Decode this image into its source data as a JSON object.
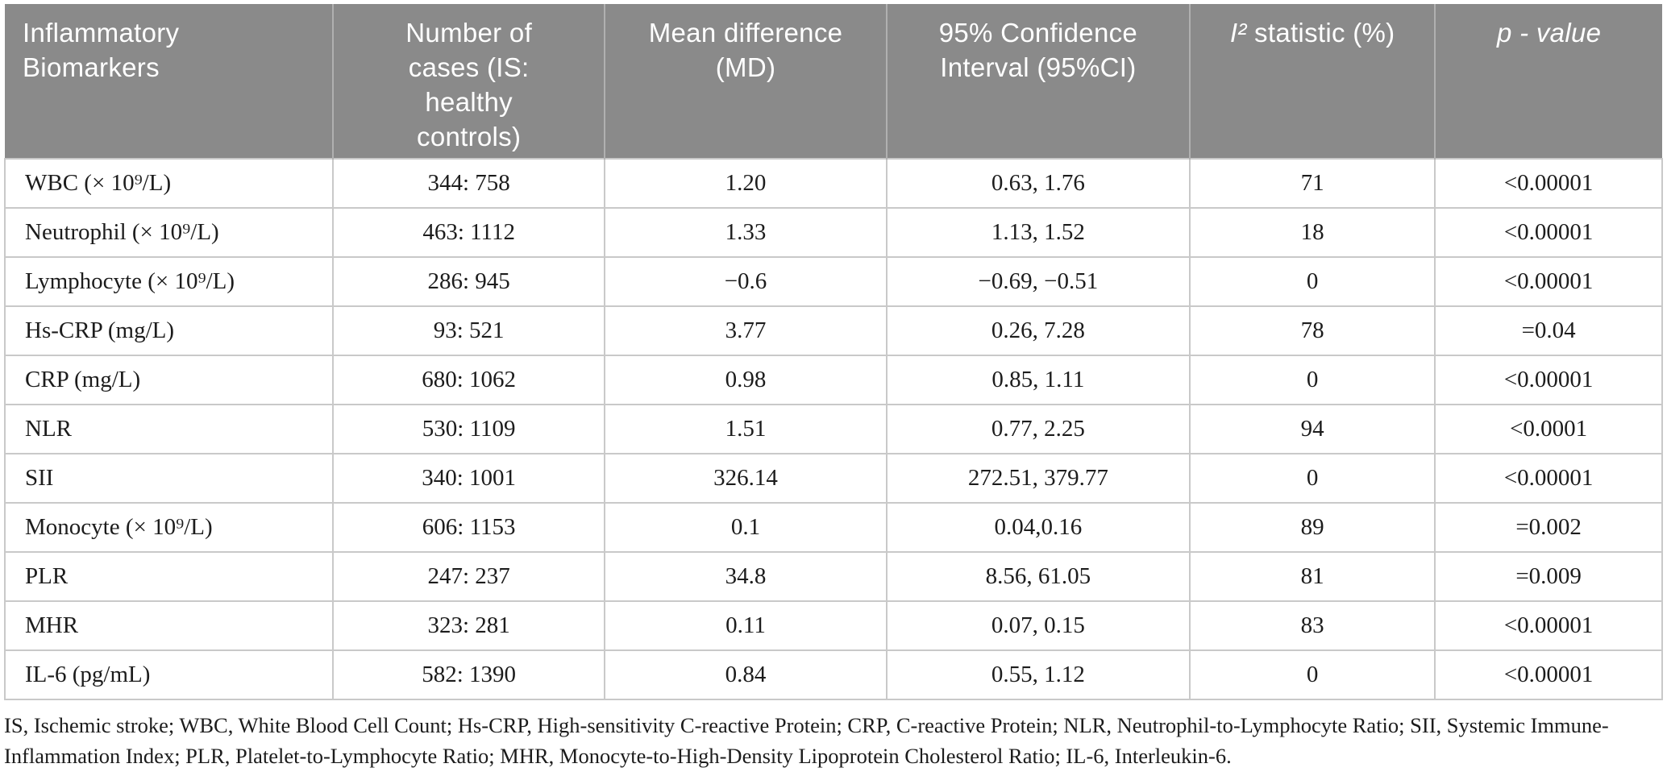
{
  "colors": {
    "header_bg": "#8a8a8a",
    "header_text": "#ffffff",
    "body_text": "#1c1c1c",
    "grid_border": "#c9c9c9"
  },
  "table": {
    "columns": [
      {
        "key": "biomarker",
        "label": "Inflammatory\nBiomarkers",
        "align": "left"
      },
      {
        "key": "cases",
        "label": "Number of\ncases (IS:\nhealthy\ncontrols)",
        "align": "center"
      },
      {
        "key": "md",
        "label": "Mean difference\n(MD)",
        "align": "center"
      },
      {
        "key": "ci",
        "label": "95% Confidence\nInterval (95%CI)",
        "align": "center"
      },
      {
        "key": "i2",
        "label_italic": "I²",
        "label_rest": " statistic (%)",
        "align": "center"
      },
      {
        "key": "p",
        "label": "p - value",
        "align": "center",
        "italic": true
      }
    ],
    "rows": [
      {
        "biomarker": "WBC (× 10⁹/L)",
        "cases": "344: 758",
        "md": "1.20",
        "ci": "0.63, 1.76",
        "i2": "71",
        "p": "<0.00001"
      },
      {
        "biomarker": "Neutrophil (× 10⁹/L)",
        "cases": "463: 1112",
        "md": "1.33",
        "ci": "1.13, 1.52",
        "i2": "18",
        "p": "<0.00001"
      },
      {
        "biomarker": "Lymphocyte (× 10⁹/L)",
        "cases": "286: 945",
        "md": "−0.6",
        "ci": "−0.69, −0.51",
        "i2": "0",
        "p": "<0.00001"
      },
      {
        "biomarker": "Hs-CRP (mg/L)",
        "cases": "93: 521",
        "md": "3.77",
        "ci": "0.26, 7.28",
        "i2": "78",
        "p": "=0.04"
      },
      {
        "biomarker": "CRP (mg/L)",
        "cases": "680: 1062",
        "md": "0.98",
        "ci": "0.85, 1.11",
        "i2": "0",
        "p": "<0.00001"
      },
      {
        "biomarker": "NLR",
        "cases": "530: 1109",
        "md": "1.51",
        "ci": "0.77, 2.25",
        "i2": "94",
        "p": "<0.0001"
      },
      {
        "biomarker": "SII",
        "cases": "340: 1001",
        "md": "326.14",
        "ci": "272.51, 379.77",
        "i2": "0",
        "p": "<0.00001"
      },
      {
        "biomarker": "Monocyte (× 10⁹/L)",
        "cases": "606: 1153",
        "md": "0.1",
        "ci": "0.04,0.16",
        "i2": "89",
        "p": "=0.002"
      },
      {
        "biomarker": "PLR",
        "cases": "247: 237",
        "md": "34.8",
        "ci": "8.56, 61.05",
        "i2": "81",
        "p": "=0.009"
      },
      {
        "biomarker": "MHR",
        "cases": "323: 281",
        "md": "0.11",
        "ci": "0.07, 0.15",
        "i2": "83",
        "p": "<0.00001"
      },
      {
        "biomarker": "IL-6 (pg/mL)",
        "cases": "582: 1390",
        "md": "0.84",
        "ci": "0.55, 1.12",
        "i2": "0",
        "p": "<0.00001"
      }
    ],
    "footnote": "IS, Ischemic stroke; WBC, White Blood Cell Count; Hs-CRP, High-sensitivity C-reactive Protein; CRP, C-reactive Protein; NLR, Neutrophil-to-Lymphocyte Ratio; SII, Systemic Immune-Inflammation Index; PLR, Platelet-to-Lymphocyte Ratio; MHR, Monocyte-to-High-Density Lipoprotein Cholesterol Ratio; IL-6, Interleukin-6."
  }
}
